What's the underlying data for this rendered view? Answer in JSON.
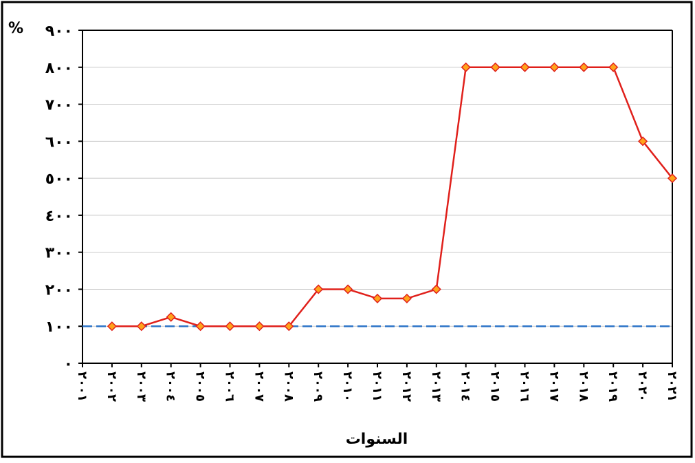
{
  "chart_data": {
    "type": "line",
    "unit": "%",
    "x_title": "السنوات",
    "categories": [
      "٢٠٠١",
      "٢٠٠٢",
      "٢٠٠٣",
      "٢٠٠٤",
      "٢٠٠٥",
      "٢٠٠٦",
      "٢٠٠٧",
      "٢٠٠٨",
      "٢٠٠٩",
      "٢٠١٠",
      "٢٠١١",
      "٢٠١٢",
      "٢٠١٣",
      "٢٠١٤",
      "٢٠١٥",
      "٢٠١٦",
      "٢٠١٧",
      "٢٠١٨",
      "٢٠١٩",
      "٢٠٢٠",
      "٢٠٢١"
    ],
    "series": [
      {
        "color": "#e0201b",
        "marker_color": "#ffa31a",
        "values": [
          null,
          100,
          100,
          125,
          100,
          100,
          100,
          100,
          200,
          200,
          175,
          175,
          200,
          800,
          800,
          800,
          800,
          800,
          800,
          600,
          500
        ]
      }
    ],
    "reference_line": {
      "value": 100,
      "color": "#2e75c8"
    },
    "ylim": [
      0,
      900
    ],
    "yticks": [
      {
        "value": 0,
        "label": "٠"
      },
      {
        "value": 100,
        "label": "١٠٠"
      },
      {
        "value": 200,
        "label": "٢٠٠"
      },
      {
        "value": 300,
        "label": "٣٠٠"
      },
      {
        "value": 400,
        "label": "٤٠٠"
      },
      {
        "value": 500,
        "label": "٥٠٠"
      },
      {
        "value": 600,
        "label": "٦٠٠"
      },
      {
        "value": 700,
        "label": "٧٠٠"
      },
      {
        "value": 800,
        "label": "٨٠٠"
      },
      {
        "value": 900,
        "label": "٩٠٠"
      }
    ],
    "grid": true
  }
}
